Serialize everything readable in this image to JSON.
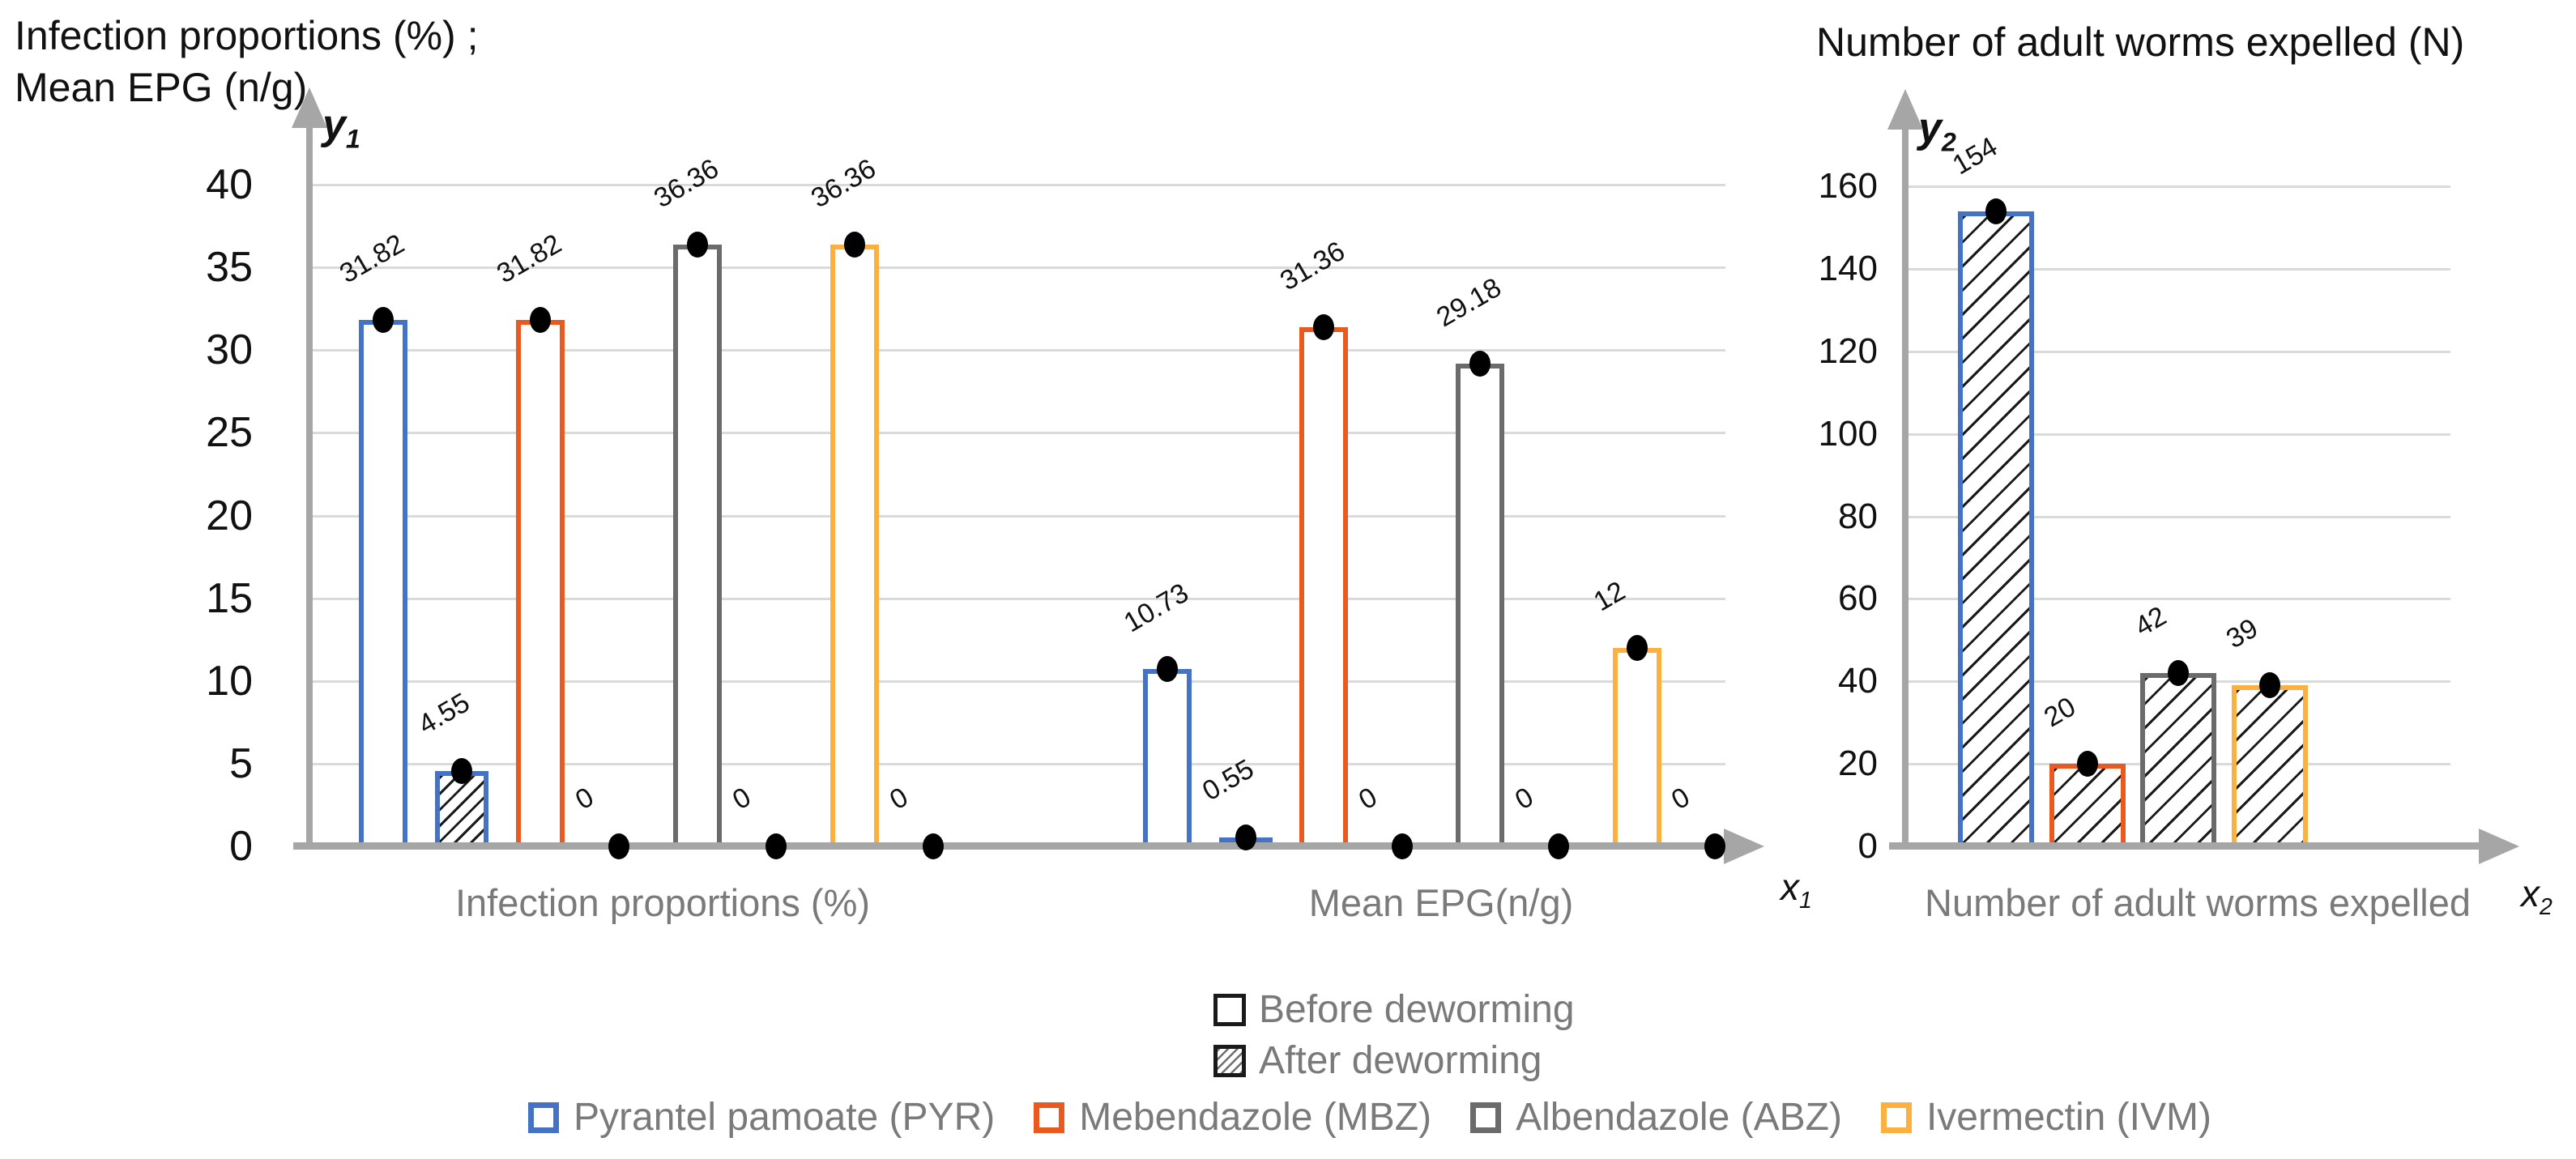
{
  "chart_data": [
    {
      "type": "bar",
      "title_lines": [
        "Infection proportions (%) ;",
        "Mean EPG (n/g)"
      ],
      "y_axis": {
        "main": "y",
        "sub": "1"
      },
      "x_axis": {
        "main": "x",
        "sub": "1"
      },
      "ylim": [
        0,
        40
      ],
      "ytick_step": 5,
      "yticks": [
        "0",
        "5",
        "10",
        "15",
        "20",
        "25",
        "30",
        "35",
        "40"
      ],
      "grid": true,
      "legend_position": "bottom",
      "groups": [
        {
          "label": "Infection proportions (%)",
          "items": [
            {
              "series": "PYR",
              "phase": "before",
              "value": 31.82,
              "label": "31.82",
              "hatch": false
            },
            {
              "series": "PYR",
              "phase": "after",
              "value": 4.55,
              "label": "4.55",
              "hatch": true
            },
            {
              "series": "MBZ",
              "phase": "before",
              "value": 31.82,
              "label": "31.82",
              "hatch": false
            },
            {
              "series": "MBZ",
              "phase": "after",
              "value": 0,
              "label": "0",
              "hatch": true
            },
            {
              "series": "ABZ",
              "phase": "before",
              "value": 36.36,
              "label": "36.36",
              "hatch": false
            },
            {
              "series": "ABZ",
              "phase": "after",
              "value": 0,
              "label": "0",
              "hatch": true
            },
            {
              "series": "IVM",
              "phase": "before",
              "value": 36.36,
              "label": "36.36",
              "hatch": false
            },
            {
              "series": "IVM",
              "phase": "after",
              "value": 0,
              "label": "0",
              "hatch": true
            }
          ]
        },
        {
          "label": "Mean EPG(n/g)",
          "items": [
            {
              "series": "PYR",
              "phase": "before",
              "value": 10.73,
              "label": "10.73",
              "hatch": false
            },
            {
              "series": "PYR",
              "phase": "after",
              "value": 0.55,
              "label": "0.55",
              "hatch": true
            },
            {
              "series": "MBZ",
              "phase": "before",
              "value": 31.36,
              "label": "31.36",
              "hatch": false
            },
            {
              "series": "MBZ",
              "phase": "after",
              "value": 0,
              "label": "0",
              "hatch": true
            },
            {
              "series": "ABZ",
              "phase": "before",
              "value": 29.18,
              "label": "29.18",
              "hatch": false
            },
            {
              "series": "ABZ",
              "phase": "after",
              "value": 0,
              "label": "0",
              "hatch": true
            },
            {
              "series": "IVM",
              "phase": "before",
              "value": 12,
              "label": "12",
              "hatch": false
            },
            {
              "series": "IVM",
              "phase": "after",
              "value": 0,
              "label": "0",
              "hatch": true
            }
          ]
        }
      ]
    },
    {
      "type": "bar",
      "title_lines": [
        "Number of adult worms expelled (N)"
      ],
      "y_axis": {
        "main": "y",
        "sub": "2"
      },
      "x_axis": {
        "main": "x",
        "sub": "2"
      },
      "ylim": [
        0,
        160
      ],
      "ytick_step": 20,
      "yticks": [
        "0",
        "20",
        "40",
        "60",
        "80",
        "100",
        "120",
        "140",
        "160"
      ],
      "grid": true,
      "groups": [
        {
          "label": "Number of adult worms expelled",
          "items": [
            {
              "series": "PYR",
              "phase": "after",
              "value": 154,
              "label": "154",
              "hatch": true
            },
            {
              "series": "MBZ",
              "phase": "after",
              "value": 20,
              "label": "20",
              "hatch": true
            },
            {
              "series": "ABZ",
              "phase": "after",
              "value": 42,
              "label": "42",
              "hatch": true
            },
            {
              "series": "IVM",
              "phase": "after",
              "value": 39,
              "label": "39",
              "hatch": true
            }
          ]
        }
      ]
    }
  ],
  "series": {
    "PYR": {
      "label": "Pyrantel pamoate (PYR)",
      "color": "#4472C4"
    },
    "MBZ": {
      "label": "Mebendazole (MBZ)",
      "color": "#E95A20"
    },
    "ABZ": {
      "label": "Albendazole (ABZ)",
      "color": "#6B6B6B"
    },
    "IVM": {
      "label": "Ivermectin (IVM)",
      "color": "#FBB03F"
    }
  },
  "legend": {
    "phase_items": [
      {
        "label": "Before deworming",
        "hatch": false
      },
      {
        "label": "After deworming",
        "hatch": true
      }
    ],
    "series_order": [
      "PYR",
      "MBZ",
      "ABZ",
      "IVM"
    ]
  },
  "colors": {
    "axis": "#A6A6A6",
    "grid": "#DADADA",
    "text_muted": "#7A7A7A",
    "text_dark": "#111111"
  }
}
